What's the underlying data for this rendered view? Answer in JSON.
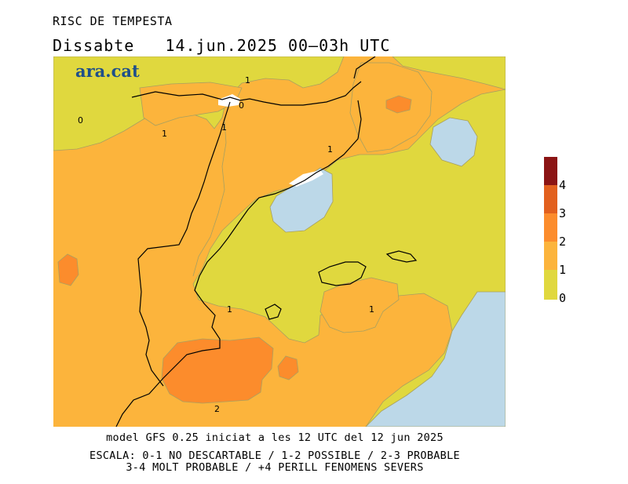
{
  "title": "RISC DE TEMPESTA",
  "subtitle": "Dissabte   14.jun.2025 00—03h UTC",
  "logo": "ara.cat",
  "footer": {
    "line1": "model GFS 0.25 iniciat a les 12 UTC del 12 jun 2025",
    "line2": "ESCALA: 0-1 NO DESCARTABLE / 1-2 POSSIBLE / 2-3 PROBABLE",
    "line3": "3-4 MOLT PROBABLE / +4 PERILL FENOMENS SEVERS"
  },
  "legend": {
    "labels": [
      "4",
      "3",
      "2",
      "1",
      "0"
    ],
    "colors": {
      "level_4_plus": "#8b1414",
      "level_3_4": "#e2601e",
      "level_2_3": "#fc8c2c",
      "level_1_2": "#fcb43c",
      "level_0_1": "#e0d83e"
    }
  },
  "map": {
    "sea_color": "#bcd8e8",
    "contour_labels": [
      "1",
      "0",
      "0",
      "1",
      "1",
      "1",
      "1",
      "1",
      "2"
    ]
  }
}
